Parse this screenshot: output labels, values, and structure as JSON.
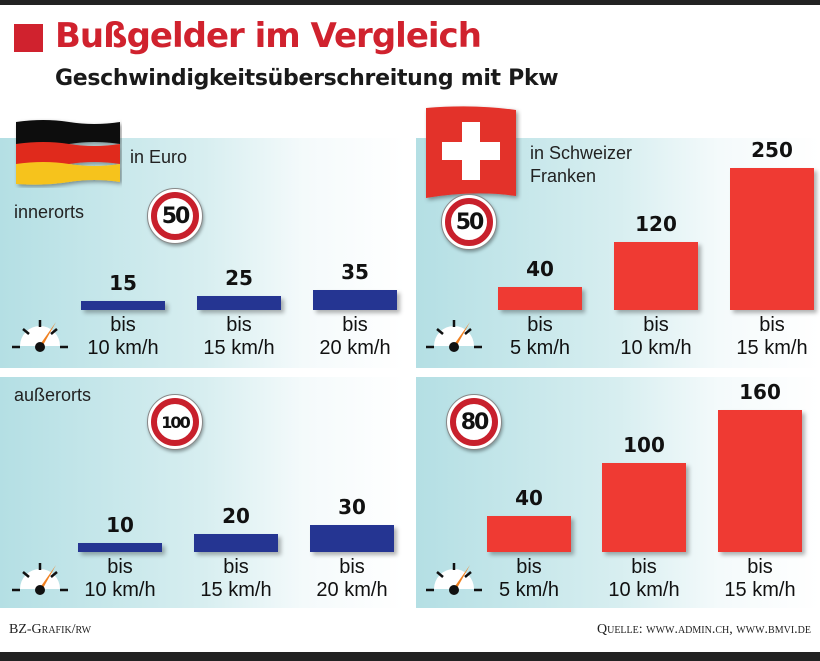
{
  "header": {
    "title": "Bußgelder im Vergleich",
    "subtitle": "Geschwindigkeitsüberschreitung mit Pkw"
  },
  "colors": {
    "accent": "#d0222e",
    "germany_bar": "#253592",
    "switzerland_bar": "#ef3a33",
    "panel_bg": "#b4dfe4"
  },
  "germany": {
    "flag_icon": "germany-flag-icon",
    "currency_label": "in Euro",
    "innerorts_label": "innerorts",
    "ausserorts_label": "außerorts"
  },
  "switzerland": {
    "flag_icon": "switzerland-flag-icon",
    "currency_label_line1": "in Schweizer",
    "currency_label_line2": "Franken"
  },
  "chart_data": [
    {
      "type": "bar",
      "title": "Deutschland innerorts (50)",
      "speed_limit": "50",
      "unit": "Euro",
      "categories": [
        "bis 10 km/h",
        "bis 15 km/h",
        "bis 20 km/h"
      ],
      "cat_line1": [
        "bis",
        "bis",
        "bis"
      ],
      "cat_line2": [
        "10 km/h",
        "15 km/h",
        "20 km/h"
      ],
      "values": [
        15,
        25,
        35
      ],
      "value_labels": [
        "15",
        "25",
        "35"
      ],
      "color": "#253592",
      "ylim": [
        0,
        250
      ]
    },
    {
      "type": "bar",
      "title": "Schweiz innerorts (50)",
      "speed_limit": "50",
      "unit": "Schweizer Franken",
      "categories": [
        "bis 5 km/h",
        "bis 10 km/h",
        "bis 15 km/h"
      ],
      "cat_line1": [
        "bis",
        "bis",
        "bis"
      ],
      "cat_line2": [
        "5 km/h",
        "10 km/h",
        "15 km/h"
      ],
      "values": [
        40,
        120,
        250
      ],
      "value_labels": [
        "40",
        "120",
        "250"
      ],
      "color": "#ef3a33",
      "ylim": [
        0,
        250
      ]
    },
    {
      "type": "bar",
      "title": "Deutschland außerorts (100)",
      "speed_limit": "100",
      "unit": "Euro",
      "categories": [
        "bis 10 km/h",
        "bis 15 km/h",
        "bis 20 km/h"
      ],
      "cat_line1": [
        "bis",
        "bis",
        "bis"
      ],
      "cat_line2": [
        "10 km/h",
        "15 km/h",
        "20 km/h"
      ],
      "values": [
        10,
        20,
        30
      ],
      "value_labels": [
        "10",
        "20",
        "30"
      ],
      "color": "#253592",
      "ylim": [
        0,
        160
      ]
    },
    {
      "type": "bar",
      "title": "Schweiz außerorts (80)",
      "speed_limit": "80",
      "unit": "Schweizer Franken",
      "categories": [
        "bis 5 km/h",
        "bis 10 km/h",
        "bis 15 km/h"
      ],
      "cat_line1": [
        "bis",
        "bis",
        "bis"
      ],
      "cat_line2": [
        "5 km/h",
        "10 km/h",
        "15 km/h"
      ],
      "values": [
        40,
        100,
        160
      ],
      "value_labels": [
        "40",
        "100",
        "160"
      ],
      "color": "#ef3a33",
      "ylim": [
        0,
        160
      ]
    }
  ],
  "footer": {
    "credit": "BZ-Grafik/rw",
    "source": "Quelle: www.admin.ch, www.bmvi.de"
  }
}
